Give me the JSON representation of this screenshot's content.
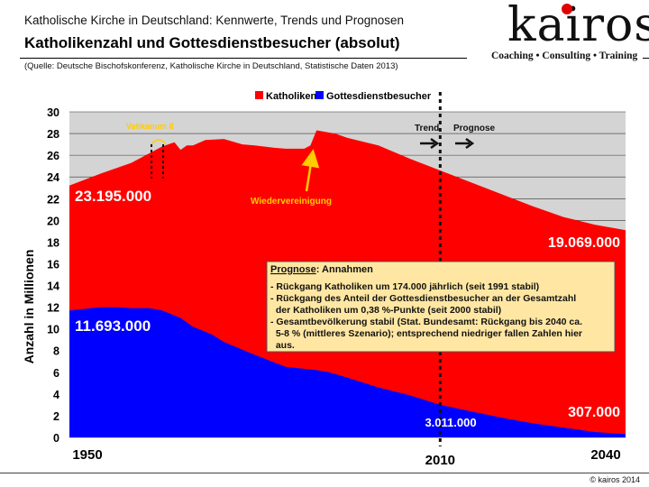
{
  "header": {
    "supertitle": "Katholische Kirche in Deutschland: Kennwerte, Trends und Prognosen",
    "title": "Katholikenzahl und Gottesdienstbesucher (absolut)",
    "source": "(Quelle: Deutsche Bischofskonferenz, Katholische Kirche in Deutschland, Statistische Daten 2013)"
  },
  "logo": {
    "text": "kairos",
    "tagline": "Coaching • Consulting • Training"
  },
  "footer": {
    "copyright": "© kairos 2014"
  },
  "colors": {
    "catholics": "#ff0000",
    "attendance": "#0000ff",
    "background": "#d4d4d4",
    "annotation_yellow": "#ffcc00",
    "annotation_box": "#ffe7a3"
  },
  "chart_data": {
    "type": "area",
    "title": "Katholikenzahl und Gottesdienstbesucher (absolut)",
    "ylabel": "Anzahl in Millionen",
    "xlabel": "",
    "xlim": [
      1950,
      2040
    ],
    "ylim": [
      0,
      30
    ],
    "y_ticks": [
      0,
      2,
      4,
      6,
      8,
      10,
      12,
      14,
      16,
      18,
      20,
      22,
      24,
      26,
      28,
      30
    ],
    "x_tick_labels": [
      "1950",
      "2010",
      "2040"
    ],
    "grid": true,
    "legend": {
      "position": "top",
      "entries": [
        "Katholiken",
        "Gottesdienstbesucher"
      ]
    },
    "series": [
      {
        "name": "Katholiken",
        "x": [
          1950,
          1955,
          1960,
          1963,
          1965,
          1967,
          1968,
          1969,
          1970,
          1972,
          1975,
          1978,
          1980,
          1983,
          1985,
          1988,
          1989,
          1990,
          1991,
          1993,
          1995,
          2000,
          2005,
          2010,
          2015,
          2020,
          2025,
          2030,
          2035,
          2040
        ],
        "values": [
          23.2,
          24.3,
          25.3,
          26.2,
          26.8,
          27.2,
          26.5,
          26.9,
          26.9,
          27.4,
          27.5,
          27.0,
          26.9,
          26.7,
          26.6,
          26.6,
          26.9,
          28.3,
          28.2,
          28.0,
          27.6,
          26.9,
          25.7,
          24.6,
          23.5,
          22.4,
          21.3,
          20.3,
          19.6,
          19.1
        ]
      },
      {
        "name": "Gottesdienstbesucher",
        "x": [
          1950,
          1955,
          1958,
          1960,
          1963,
          1965,
          1968,
          1970,
          1973,
          1975,
          1980,
          1985,
          1990,
          1992,
          1995,
          2000,
          2005,
          2010,
          2015,
          2020,
          2025,
          2030,
          2035,
          2040
        ],
        "values": [
          11.7,
          12.0,
          12.0,
          11.9,
          11.9,
          11.7,
          11.0,
          10.2,
          9.5,
          8.8,
          7.6,
          6.5,
          6.2,
          6.0,
          5.5,
          4.6,
          3.9,
          3.0,
          2.4,
          1.8,
          1.3,
          0.9,
          0.5,
          0.3
        ]
      }
    ],
    "annotations": {
      "catholics_1950": "23.195.000",
      "attendance_1950": "11.693.000",
      "catholics_2040": "19.069.000",
      "attendance_2040": "307.000",
      "attendance_2010": "3.011.000",
      "vatikanum": "Vatikanum II",
      "wiedervereinigung": "Wiedervereinigung",
      "trend": "Trend",
      "prognose": "Prognose",
      "prognose_box": {
        "heading": "Prognose",
        "heading_rest": ": Annahmen",
        "lines": [
          "- Rückgang Katholiken um 174.000 jährlich (seit 1991 stabil)",
          "- Rückgang des Anteil der Gottesdienstbesucher an der Gesamtzahl",
          "  der Katholiken um 0,38 %-Punkte (seit 2000 stabil)",
          "- Gesamtbevölkerung stabil (Stat. Bundesamt: Rückgang bis 2040 ca.",
          "  5-8 % (mittleres Szenario); entsprechend niedriger fallen Zahlen hier",
          "  aus."
        ]
      }
    }
  }
}
